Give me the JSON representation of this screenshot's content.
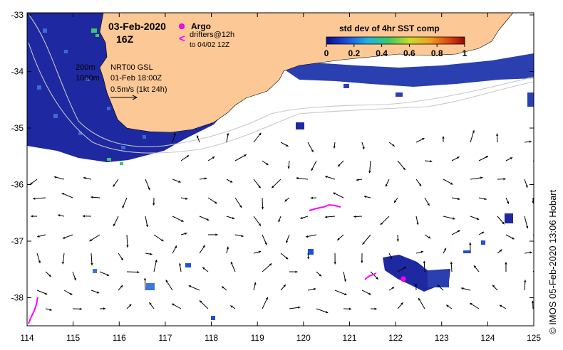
{
  "map": {
    "date": "03-Feb-2020",
    "time": "16Z",
    "argo_label": "Argo",
    "drifters_label": "drifters@12h",
    "drifters_to_label": "to 04/02 12Z",
    "colorbar_title": "std dev of 4hr SST comp",
    "colorbar_ticks": [
      "0",
      "0.2",
      "0.4",
      "0.6",
      "0.8",
      "1"
    ],
    "isobath_200": "200m",
    "isobath_1000": "1000m",
    "current_product": "NRT00 GSL",
    "current_date": "01-Feb 18:00Z",
    "scale_label": "0.5m/s (1kt 24h)",
    "credit": "© IMOS 05-Feb-2020 13:06 Hobart",
    "lon_ticks": [
      "114",
      "115",
      "116",
      "117",
      "118",
      "119",
      "120",
      "121",
      "122",
      "123",
      "124",
      "125"
    ],
    "lat_ticks": [
      "-33",
      "-34",
      "-35",
      "-36",
      "-37",
      "-38"
    ],
    "colors": {
      "land": "#fcc896",
      "arrows": "#000000",
      "drifter": "#ff00ff",
      "argo": "#ff00ff",
      "sst_low": "#1e28a0",
      "isobath": "#c8c8c8"
    }
  }
}
